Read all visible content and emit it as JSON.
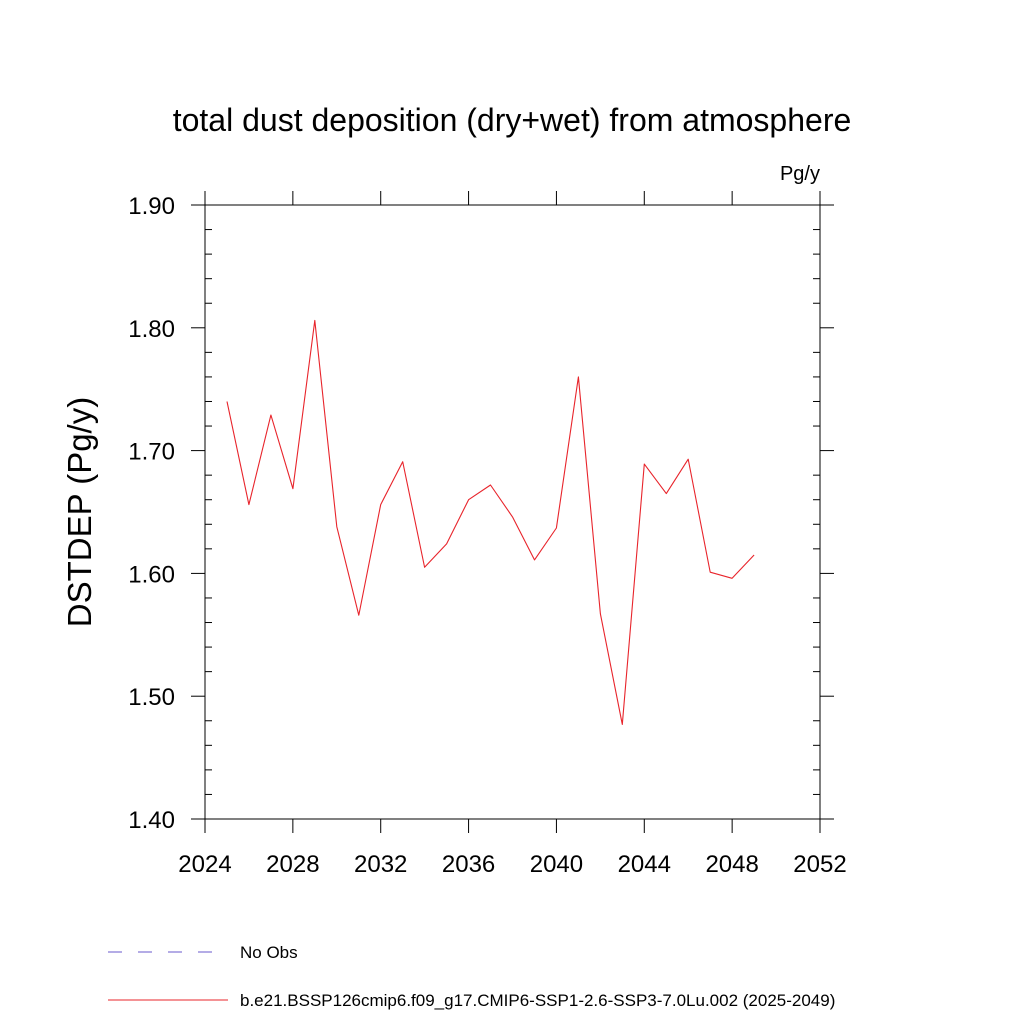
{
  "chart_data": {
    "type": "line",
    "title": "total dust deposition (dry+wet) from atmosphere",
    "units_label": "Pg/y",
    "ylabel": "DSTDEP  (Pg/y)",
    "xlabel": "",
    "xlim": [
      2024,
      2052
    ],
    "ylim": [
      1.4,
      1.9
    ],
    "x_ticks": [
      2024,
      2028,
      2032,
      2036,
      2040,
      2044,
      2048,
      2052
    ],
    "x_tick_labels": [
      "2024",
      "2028",
      "2032",
      "2036",
      "2040",
      "2044",
      "2048",
      "2052"
    ],
    "y_ticks": [
      1.4,
      1.5,
      1.6,
      1.7,
      1.8,
      1.9
    ],
    "y_tick_labels": [
      "1.40",
      "1.50",
      "1.60",
      "1.70",
      "1.80",
      "1.90"
    ],
    "grid": false,
    "legend_placement": "bottom",
    "series": [
      {
        "name": "b.e21.BSSP126cmip6.f09_g17.CMIP6-SSP1-2.6-SSP3-7.0Lu.002 (2025-2049)",
        "color": "#e8242b",
        "style": "solid",
        "x": [
          2025,
          2026,
          2027,
          2028,
          2029,
          2030,
          2031,
          2032,
          2033,
          2034,
          2035,
          2036,
          2037,
          2038,
          2039,
          2040,
          2041,
          2042,
          2043,
          2044,
          2045,
          2046,
          2047,
          2048,
          2049
        ],
        "y": [
          1.74,
          1.656,
          1.729,
          1.669,
          1.806,
          1.638,
          1.566,
          1.656,
          1.691,
          1.605,
          1.624,
          1.66,
          1.672,
          1.646,
          1.611,
          1.637,
          1.76,
          1.567,
          1.477,
          1.689,
          1.665,
          1.693,
          1.601,
          1.596,
          1.615
        ]
      }
    ],
    "legend": [
      {
        "label": "No Obs",
        "color": "#6a5acd",
        "style": "dashed"
      },
      {
        "label": "b.e21.BSSP126cmip6.f09_g17.CMIP6-SSP1-2.6-SSP3-7.0Lu.002 (2025-2049)",
        "color": "#e8242b",
        "style": "solid"
      }
    ]
  }
}
